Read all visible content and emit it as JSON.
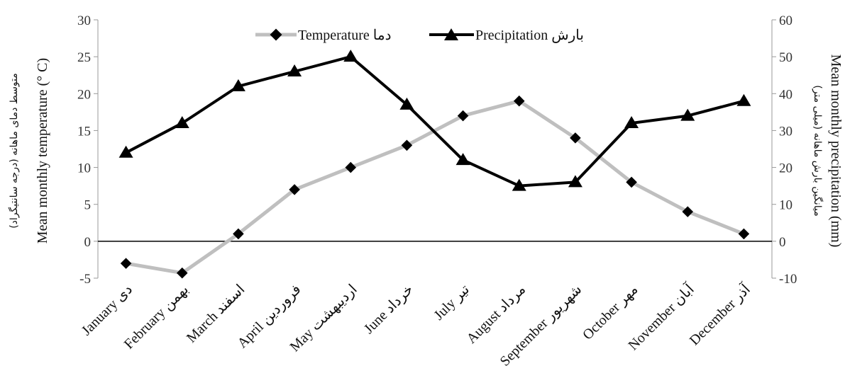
{
  "chart_data": {
    "type": "line",
    "categories": [
      "January  دی",
      "February  بهمن",
      "March  اسفند",
      "April  فروردین",
      "May  اردیبهشت",
      "June  خرداد",
      "July  تیر",
      "August  مرداد",
      "September  شهریور",
      "October  مهر",
      "November  آبان",
      "December  آذر"
    ],
    "series": [
      {
        "name": "Temperature دما",
        "axis": "left",
        "color": "#bfbfbf",
        "marker": "diamond",
        "values": [
          -3,
          -4.3,
          1,
          7,
          10,
          13,
          17,
          19,
          14,
          8,
          4,
          1
        ]
      },
      {
        "name": "Precipitation بارش",
        "axis": "right",
        "color": "#000000",
        "marker": "triangle",
        "values": [
          24,
          32,
          42,
          46,
          50,
          37,
          22,
          15,
          16,
          32,
          34,
          38
        ]
      }
    ],
    "ylabel": "Mean monthly temperature (° C)",
    "ylabel_fa": "متوسط دمای ماهانه (درجه سانتیگراد)",
    "y2label": "Mean monthly precipitation (mm)",
    "y2label_fa": "میانگین بارش ماهانه (میلی متر)",
    "ylim": [
      -5,
      30
    ],
    "y2lim": [
      -10,
      60
    ],
    "yticks": [
      "30",
      "25",
      "20",
      "15",
      "10",
      "5",
      "0",
      "-5"
    ],
    "y2ticks": [
      "60",
      "50",
      "40",
      "30",
      "20",
      "10",
      "0",
      "-10"
    ],
    "legend_position": "top-center",
    "grid": false
  }
}
